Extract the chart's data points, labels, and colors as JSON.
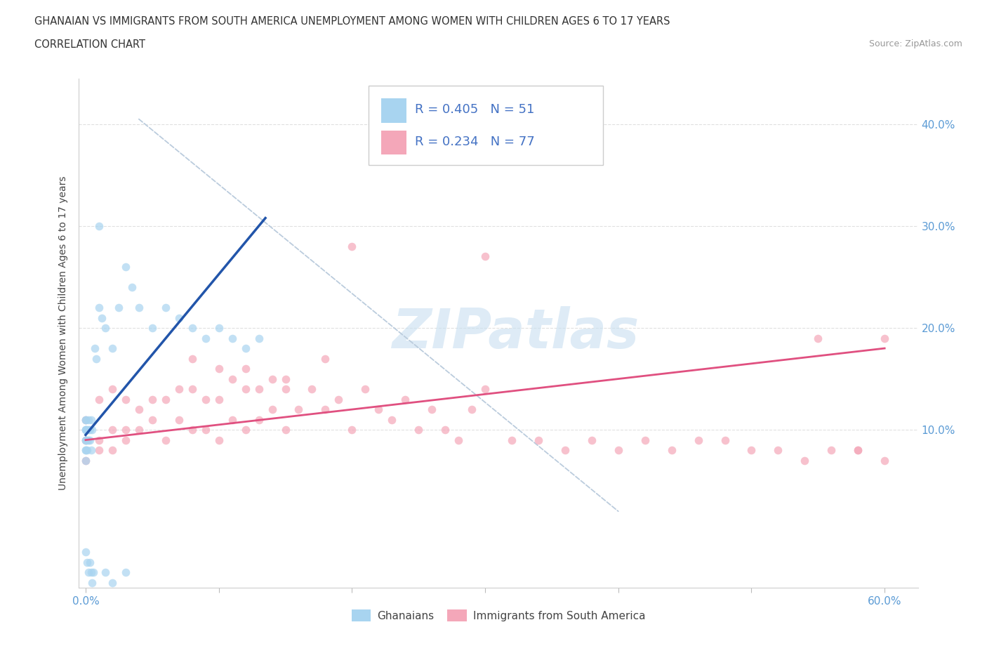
{
  "title_line1": "GHANAIAN VS IMMIGRANTS FROM SOUTH AMERICA UNEMPLOYMENT AMONG WOMEN WITH CHILDREN AGES 6 TO 17 YEARS",
  "title_line2": "CORRELATION CHART",
  "source": "Source: ZipAtlas.com",
  "ylabel": "Unemployment Among Women with Children Ages 6 to 17 years",
  "xlim": [
    -0.005,
    0.625
  ],
  "ylim": [
    -0.055,
    0.445
  ],
  "ghanaian_color": "#A8D4F0",
  "south_america_color": "#F4A7B9",
  "ghanaian_line_color": "#2255AA",
  "south_america_line_color": "#E05080",
  "legend_box_color": "#CCCCCC",
  "watermark": "ZIPatlas",
  "watermark_color": "#C8DFF0",
  "R_ghana": 0.405,
  "N_ghana": 51,
  "R_sa": 0.234,
  "N_sa": 77,
  "grid_color": "#E0E0E0",
  "diag_color": "#BBCCDD",
  "tick_label_color": "#5B9BD5",
  "ylabel_color": "#444444",
  "title_color": "#333333"
}
